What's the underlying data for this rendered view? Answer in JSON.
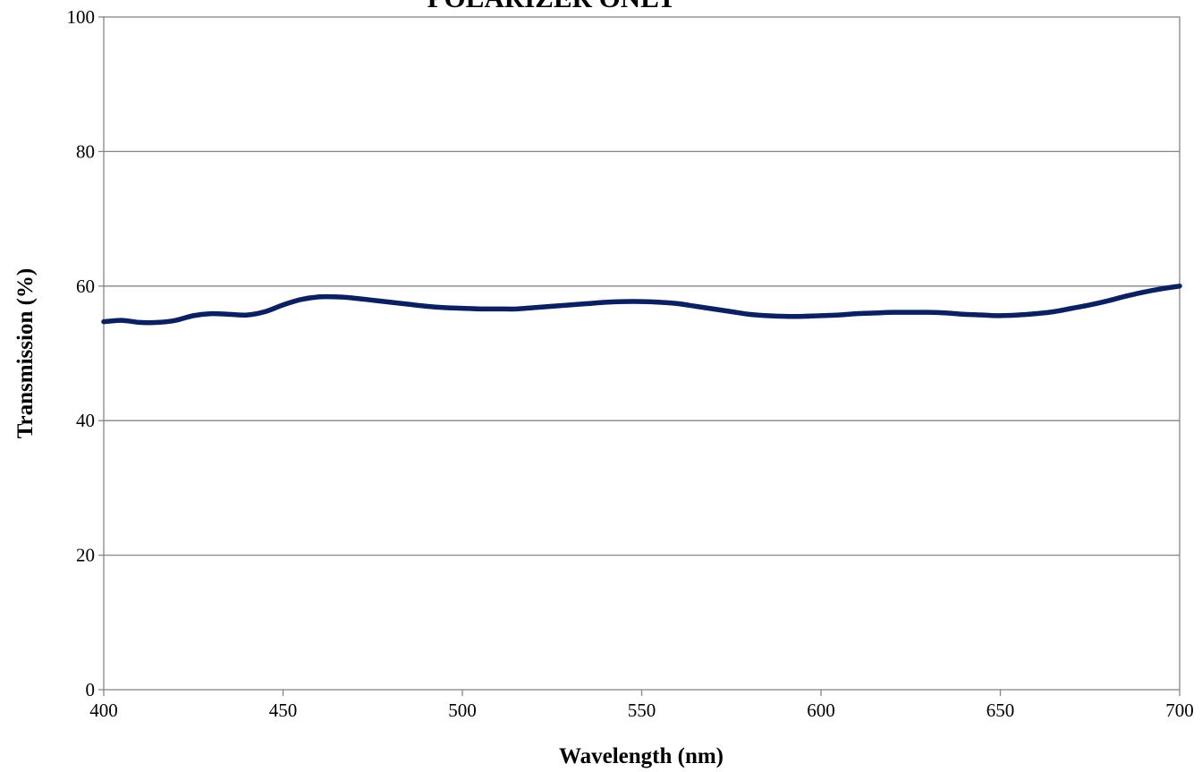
{
  "chart_data": {
    "type": "line",
    "title": "POLARIZER ONLY",
    "xlabel": "Wavelength (nm)",
    "ylabel": "Transmission (%)",
    "xlim": [
      400,
      700
    ],
    "ylim": [
      0,
      100
    ],
    "x_ticks": [
      400,
      450,
      500,
      550,
      600,
      650,
      700
    ],
    "y_ticks": [
      0,
      20,
      40,
      60,
      80,
      100
    ],
    "grid": "horizontal",
    "legend": "none",
    "series": [
      {
        "color": "#0a2060",
        "x": [
          400,
          405,
          410,
          415,
          420,
          425,
          430,
          435,
          440,
          445,
          450,
          455,
          460,
          465,
          470,
          475,
          480,
          485,
          490,
          495,
          500,
          505,
          510,
          515,
          520,
          525,
          530,
          535,
          540,
          545,
          550,
          555,
          560,
          565,
          570,
          575,
          580,
          585,
          590,
          595,
          600,
          605,
          610,
          615,
          620,
          625,
          630,
          635,
          640,
          645,
          650,
          655,
          660,
          665,
          670,
          675,
          680,
          685,
          690,
          695,
          700
        ],
        "y": [
          54.7,
          54.9,
          54.6,
          54.6,
          54.9,
          55.6,
          55.9,
          55.8,
          55.7,
          56.2,
          57.2,
          58.0,
          58.4,
          58.4,
          58.2,
          57.9,
          57.6,
          57.3,
          57.0,
          56.8,
          56.7,
          56.6,
          56.6,
          56.6,
          56.8,
          57.0,
          57.2,
          57.4,
          57.6,
          57.7,
          57.7,
          57.6,
          57.4,
          57.0,
          56.6,
          56.2,
          55.8,
          55.6,
          55.5,
          55.5,
          55.6,
          55.7,
          55.9,
          56.0,
          56.1,
          56.1,
          56.1,
          56.0,
          55.8,
          55.7,
          55.6,
          55.7,
          55.9,
          56.2,
          56.7,
          57.2,
          57.8,
          58.5,
          59.1,
          59.6,
          60.0
        ]
      }
    ]
  }
}
